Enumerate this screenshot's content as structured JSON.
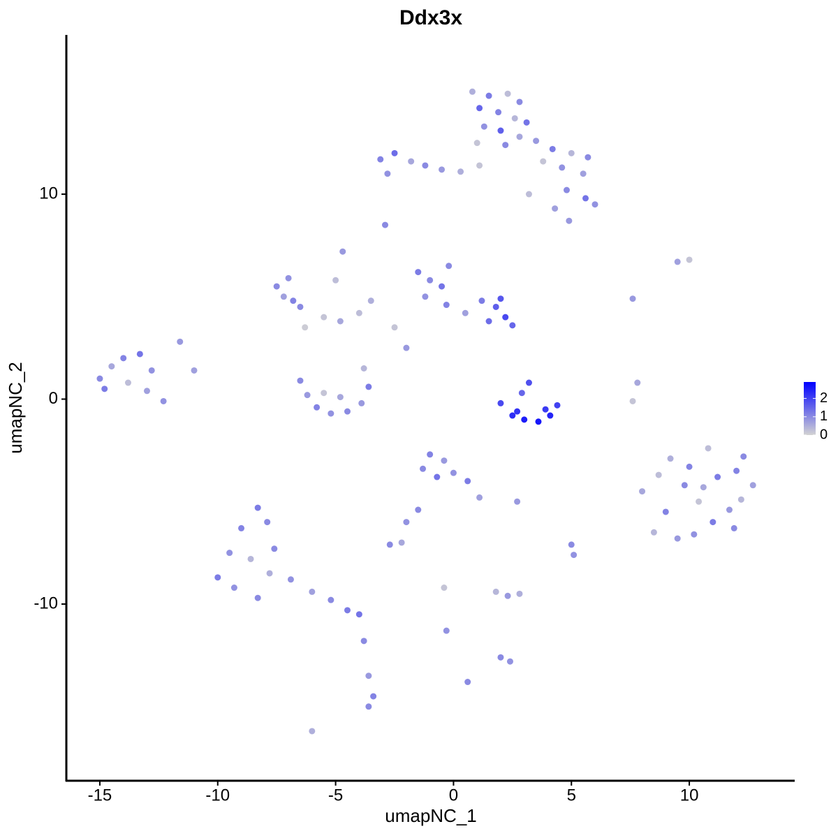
{
  "chart_data": {
    "type": "scatter",
    "title": "Ddx3x",
    "x_label": "umapNC_1",
    "y_label": "umapNC_2",
    "xlim": [
      -16.42,
      14.47
    ],
    "ylim": [
      -18.62,
      17.77
    ],
    "xticks": [
      -15,
      -10,
      -5,
      0,
      5,
      10
    ],
    "yticks": [
      -10,
      0,
      10
    ],
    "color_scale": {
      "colors": [
        "#d3d3d3",
        "#0000ff"
      ],
      "lim": [
        0,
        2.9
      ],
      "ticks": [
        0,
        1,
        2
      ]
    },
    "x": [
      0.8,
      1.5,
      2.3,
      2.8,
      1.1,
      1.9,
      2.6,
      3.1,
      1.3,
      2.0,
      2.8,
      1.0,
      2.2,
      3.5,
      4.2,
      5.0,
      5.7,
      3.8,
      4.6,
      5.5,
      4.8,
      5.6,
      6.0,
      4.3,
      4.9,
      3.2,
      -3.1,
      -2.5,
      -1.8,
      -2.8,
      -1.2,
      -0.5,
      0.3,
      1.1,
      -2.9,
      -4.7,
      -5.0,
      -7.5,
      -7.0,
      -6.8,
      -7.2,
      -6.5,
      -5.5,
      -4.8,
      -4.0,
      -3.5,
      -2.5,
      -2.0,
      -1.5,
      -1.0,
      -0.5,
      -1.2,
      -0.3,
      0.5,
      1.2,
      1.8,
      2.2,
      2.5,
      1.5,
      2.0,
      -6.5,
      -6.2,
      -5.8,
      -5.2,
      -4.5,
      -3.9,
      -3.6,
      -3.8,
      -5.5,
      -4.8,
      -15.0,
      -14.5,
      -14.0,
      -13.3,
      -12.8,
      -13.8,
      -14.8,
      -13.0,
      -12.3,
      -11.6,
      2.0,
      2.5,
      3.0,
      3.6,
      4.1,
      4.4,
      3.2,
      2.9,
      2.7,
      3.9,
      8.0,
      8.5,
      9.2,
      9.8,
      10.2,
      10.8,
      11.2,
      11.7,
      12.3,
      12.7,
      9.0,
      10.4,
      11.9,
      8.7,
      10.0,
      12.2,
      11.0,
      9.5,
      10.6,
      12.0,
      -8.3,
      -7.9,
      -9.0,
      -9.5,
      -8.6,
      -7.6,
      -10.0,
      -9.3,
      -8.3,
      -7.8,
      -6.9,
      -6.0,
      -5.2,
      -4.5,
      -4.0,
      -3.8,
      -3.6,
      -3.4,
      -3.6,
      -6.0,
      -1.0,
      -0.4,
      -1.3,
      -0.7,
      0.0,
      0.6,
      1.1,
      -1.5,
      -2.0,
      -2.7,
      -2.2,
      1.8,
      2.3,
      2.8,
      2.0,
      2.4,
      -0.4,
      -0.3,
      0.6,
      2.7,
      5.0,
      5.1,
      7.6,
      7.8,
      9.5,
      10.0,
      7.6,
      -11.0,
      -6.3,
      -0.2
    ],
    "y": [
      15.0,
      14.8,
      14.9,
      14.5,
      14.2,
      14.0,
      13.7,
      13.5,
      13.3,
      13.1,
      12.8,
      12.5,
      12.4,
      12.6,
      12.2,
      12.0,
      11.8,
      11.6,
      11.3,
      11.0,
      10.2,
      9.8,
      9.5,
      9.3,
      8.7,
      10.0,
      11.7,
      12.0,
      11.6,
      11.0,
      11.4,
      11.2,
      11.1,
      11.4,
      8.5,
      7.2,
      5.8,
      5.5,
      5.9,
      4.8,
      5.0,
      4.5,
      4.0,
      3.8,
      4.2,
      4.8,
      3.5,
      2.5,
      6.2,
      5.8,
      5.5,
      5.0,
      4.6,
      4.2,
      4.8,
      4.5,
      4.0,
      3.6,
      3.8,
      4.9,
      0.9,
      0.2,
      -0.4,
      -0.7,
      -0.6,
      -0.2,
      0.6,
      1.5,
      0.3,
      0.1,
      1.0,
      1.6,
      2.0,
      2.2,
      1.4,
      0.8,
      0.5,
      0.4,
      -0.1,
      2.8,
      -0.2,
      -0.8,
      -1.0,
      -1.1,
      -0.8,
      -0.3,
      0.8,
      0.3,
      -0.6,
      -0.5,
      -4.5,
      -6.5,
      -2.9,
      -4.2,
      -6.6,
      -2.4,
      -3.8,
      -5.4,
      -2.8,
      -4.2,
      -5.5,
      -5.0,
      -6.3,
      -3.7,
      -3.3,
      -4.9,
      -6.0,
      -6.8,
      -4.3,
      -3.5,
      -5.3,
      -6.0,
      -6.3,
      -7.5,
      -7.8,
      -7.3,
      -8.7,
      -9.2,
      -9.7,
      -8.5,
      -8.8,
      -9.4,
      -9.8,
      -10.3,
      -10.5,
      -11.8,
      -13.5,
      -14.5,
      -15.0,
      -16.2,
      -2.7,
      -3.0,
      -3.4,
      -3.8,
      -3.6,
      -4.0,
      -4.8,
      -5.4,
      -6.0,
      -7.1,
      -7.0,
      -9.4,
      -9.6,
      -9.5,
      -12.6,
      -12.8,
      -9.2,
      -11.3,
      -13.8,
      -5.0,
      -7.1,
      -7.6,
      -0.1,
      0.8,
      6.7,
      6.8,
      4.9,
      1.4,
      3.5,
      6.5
    ],
    "values": [
      0.5,
      1.2,
      0.3,
      1.0,
      1.5,
      1.1,
      0.4,
      1.3,
      0.9,
      1.6,
      0.6,
      0.2,
      1.0,
      0.8,
      1.2,
      0.4,
      1.0,
      0.2,
      0.9,
      0.7,
      1.0,
      1.3,
      0.9,
      0.7,
      0.8,
      0.3,
      1.1,
      1.4,
      0.6,
      0.9,
      1.0,
      0.8,
      0.5,
      0.2,
      1.0,
      0.8,
      0.3,
      1.0,
      0.9,
      1.1,
      0.7,
      1.0,
      0.2,
      0.6,
      0.3,
      0.5,
      0.2,
      0.8,
      1.2,
      1.0,
      1.3,
      0.9,
      1.1,
      0.7,
      1.2,
      1.6,
      1.9,
      1.5,
      1.4,
      1.7,
      1.0,
      0.8,
      1.1,
      0.9,
      1.0,
      0.8,
      1.2,
      0.4,
      0.2,
      0.6,
      1.0,
      0.6,
      1.1,
      1.3,
      0.9,
      0.3,
      1.2,
      0.7,
      0.9,
      0.8,
      1.9,
      2.3,
      2.5,
      2.6,
      2.4,
      2.0,
      1.8,
      1.5,
      2.2,
      2.1,
      0.6,
      0.4,
      0.5,
      1.0,
      0.9,
      0.3,
      1.2,
      0.8,
      1.0,
      0.7,
      1.1,
      0.2,
      1.0,
      0.3,
      1.1,
      0.4,
      1.2,
      0.8,
      0.6,
      1.1,
      1.2,
      1.0,
      1.1,
      0.9,
      0.4,
      1.0,
      1.2,
      0.9,
      1.0,
      0.5,
      0.9,
      0.7,
      1.0,
      1.2,
      1.3,
      1.0,
      0.8,
      1.1,
      1.0,
      0.5,
      1.1,
      0.8,
      1.0,
      1.3,
      0.9,
      1.2,
      0.7,
      1.0,
      0.9,
      1.0,
      0.6,
      0.4,
      0.8,
      0.5,
      1.0,
      0.9,
      0.2,
      0.9,
      1.0,
      0.8,
      1.0,
      0.9,
      0.2,
      0.6,
      0.7,
      0.2,
      0.8,
      0.7,
      0.1,
      1.0
    ]
  }
}
